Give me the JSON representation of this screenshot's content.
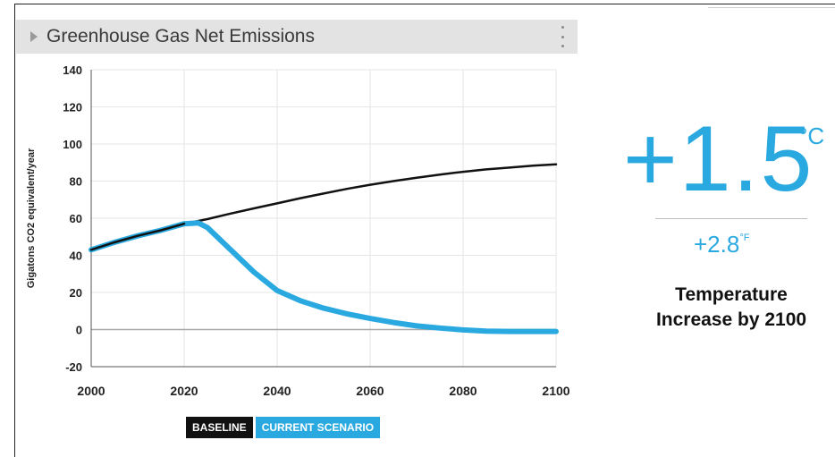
{
  "panel": {
    "title": "Greenhouse Gas Net Emissions",
    "arrow_icon": "chevron-right-icon",
    "menu_icon": "kebab-menu-icon"
  },
  "chart_data": {
    "type": "line",
    "title": "",
    "xlabel": "",
    "ylabel": "Gigatons CO2 equivalent/year",
    "xlim": [
      2000,
      2100
    ],
    "ylim": [
      -20,
      140
    ],
    "x_ticks": [
      2000,
      2020,
      2040,
      2060,
      2080,
      2100
    ],
    "y_ticks": [
      -20,
      0,
      20,
      40,
      60,
      80,
      100,
      120,
      140
    ],
    "grid": true,
    "legend_position": "bottom-left",
    "series": [
      {
        "name": "BASELINE",
        "color": "#111111",
        "points": [
          [
            2000,
            43
          ],
          [
            2005,
            47
          ],
          [
            2010,
            50.5
          ],
          [
            2015,
            53.5
          ],
          [
            2020,
            57
          ],
          [
            2025,
            59.5
          ],
          [
            2030,
            62.5
          ],
          [
            2035,
            65.3
          ],
          [
            2040,
            68
          ],
          [
            2045,
            70.8
          ],
          [
            2050,
            73.3
          ],
          [
            2055,
            75.8
          ],
          [
            2060,
            78
          ],
          [
            2065,
            80
          ],
          [
            2070,
            81.8
          ],
          [
            2075,
            83.5
          ],
          [
            2080,
            85
          ],
          [
            2085,
            86.3
          ],
          [
            2090,
            87.3
          ],
          [
            2095,
            88.3
          ],
          [
            2100,
            89
          ]
        ]
      },
      {
        "name": "CURRENT SCENARIO",
        "color": "#29a9e0",
        "points": [
          [
            2000,
            43
          ],
          [
            2005,
            47
          ],
          [
            2010,
            50.5
          ],
          [
            2015,
            53.5
          ],
          [
            2020,
            57
          ],
          [
            2023,
            57.5
          ],
          [
            2025,
            55
          ],
          [
            2030,
            43
          ],
          [
            2035,
            31
          ],
          [
            2040,
            21
          ],
          [
            2045,
            15.5
          ],
          [
            2050,
            11.5
          ],
          [
            2055,
            8.5
          ],
          [
            2060,
            6
          ],
          [
            2065,
            3.8
          ],
          [
            2070,
            2
          ],
          [
            2075,
            0.8
          ],
          [
            2080,
            -0.2
          ],
          [
            2085,
            -0.8
          ],
          [
            2090,
            -1
          ],
          [
            2095,
            -1
          ],
          [
            2100,
            -1
          ]
        ]
      }
    ]
  },
  "result": {
    "celsius_value": "+1.5",
    "celsius_unit": "°C",
    "fahrenheit_value": "+2.8",
    "fahrenheit_unit": "°F",
    "caption": "Temperature Increase by 2100"
  },
  "colors": {
    "accent": "#29a9e0",
    "baseline": "#111111",
    "header_bg": "#e3e3e3"
  }
}
